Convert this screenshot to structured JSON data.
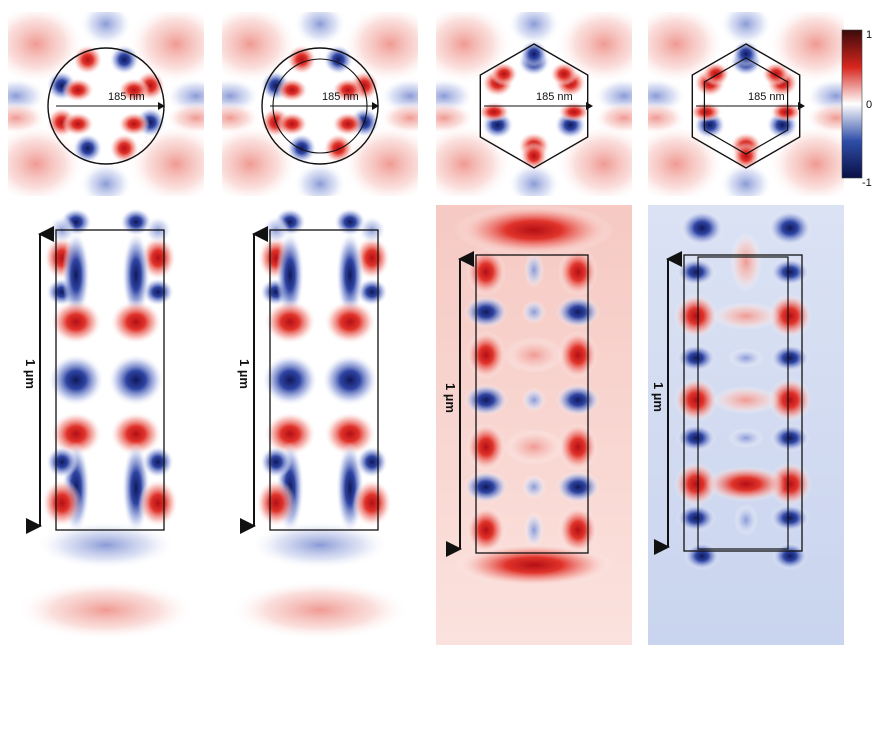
{
  "colorbar": {
    "max_label": "1",
    "mid_label": "0",
    "min_label": "-1",
    "colors": [
      "#3a0a0a",
      "#d7261e",
      "#ffffff",
      "#2f4ea8",
      "#0a0f45"
    ]
  },
  "cross_sections": [
    {
      "shape": "circle",
      "radius_label": "185 nm",
      "lobes": 8,
      "inner_ring": false
    },
    {
      "shape": "circle",
      "radius_label": "185 nm",
      "lobes": 8,
      "inner_ring": true
    },
    {
      "shape": "hexagon",
      "radius_label": "185 nm",
      "lobes": 6,
      "inner_hex": false
    },
    {
      "shape": "hexagon",
      "radius_label": "185 nm",
      "lobes": 6,
      "inner_hex": true
    }
  ],
  "side_views": [
    {
      "length_label": "1 µm",
      "pattern": "A",
      "background": "white"
    },
    {
      "length_label": "1 µm",
      "pattern": "A",
      "background": "white"
    },
    {
      "length_label": "1 µm",
      "pattern": "B",
      "background": "red"
    },
    {
      "length_label": "1 µm",
      "pattern": "C",
      "background": "blue"
    }
  ]
}
